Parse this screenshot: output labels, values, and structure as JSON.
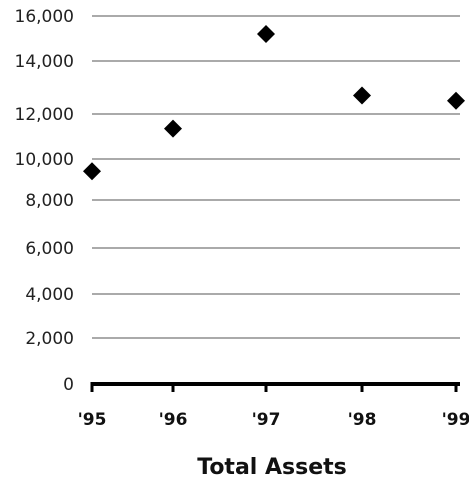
{
  "chart_data": {
    "type": "scatter",
    "title": "Total Assets",
    "x": [
      "'95",
      "'96",
      "'97",
      "'98",
      "'99"
    ],
    "y": [
      9400,
      11350,
      15200,
      12700,
      12500
    ],
    "yticks": [
      0,
      2000,
      4000,
      6000,
      8000,
      10000,
      12000,
      14000,
      16000
    ],
    "ytick_labels": [
      "0",
      "2,000",
      "4,000",
      "6,000",
      "8,000",
      "10,000",
      "12,000",
      "14,000",
      "16,000"
    ],
    "ylim": [
      0,
      16000
    ],
    "grid": true,
    "legend": "none",
    "marker": "diamond",
    "colors": {
      "marker": "#000000",
      "gridline": "#555555",
      "axis": "#000000"
    }
  }
}
